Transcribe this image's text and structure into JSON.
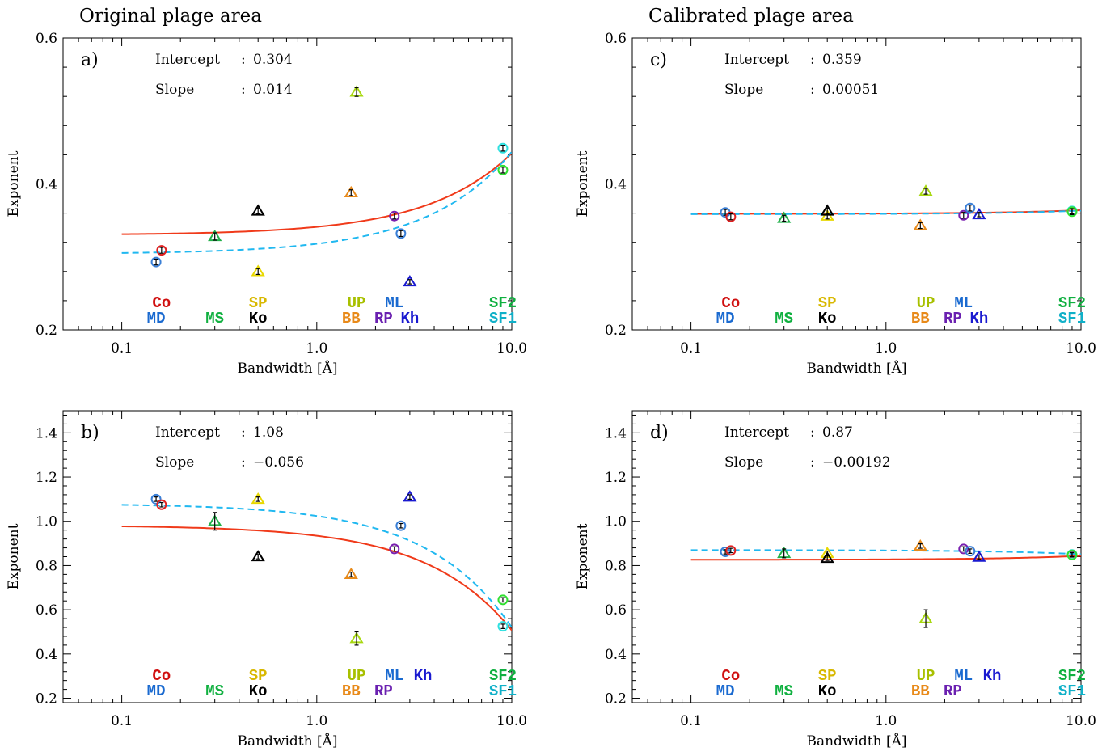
{
  "column_titles": [
    "Original plage area",
    "Calibrated plage area"
  ],
  "chart_data": [
    {
      "panel": "a)",
      "type": "scatter",
      "xscale": "log",
      "xlim": [
        0.05,
        10.0
      ],
      "ylim": [
        0.2,
        0.6
      ],
      "xticks": [
        0.1,
        1.0,
        10.0
      ],
      "xtick_labels": [
        "0.1",
        "1.0",
        "10.0"
      ],
      "yticks": [
        0.2,
        0.4,
        0.6
      ],
      "ytick_labels": [
        "0.2",
        "0.4",
        "0.6"
      ],
      "xlabel": "Bandwidth [Å]",
      "ylabel": "Exponent",
      "annotations": [
        {
          "label": "Intercept",
          "sep": ": ",
          "value": "0.304"
        },
        {
          "label": "Slope",
          "sep": ": ",
          "value": "0.014"
        }
      ],
      "points": [
        {
          "x": 0.15,
          "y": 0.293,
          "err": 0.004,
          "marker": "circle",
          "color": "#3a7fd6"
        },
        {
          "x": 0.16,
          "y": 0.309,
          "err": 0.004,
          "marker": "circle",
          "color": "#e02020"
        },
        {
          "x": 0.3,
          "y": 0.328,
          "err": 0.005,
          "marker": "triangle",
          "color": "#22b04a"
        },
        {
          "x": 0.5,
          "y": 0.28,
          "err": 0.004,
          "marker": "triangle",
          "color": "#e8d800"
        },
        {
          "x": 0.5,
          "y": 0.363,
          "err": 0.004,
          "marker": "triangle",
          "color": "#000000"
        },
        {
          "x": 1.5,
          "y": 0.388,
          "err": 0.004,
          "marker": "triangle",
          "color": "#e88a1a"
        },
        {
          "x": 1.6,
          "y": 0.526,
          "err": 0.006,
          "marker": "triangle",
          "color": "#a8d810"
        },
        {
          "x": 2.5,
          "y": 0.356,
          "err": 0.004,
          "marker": "circle",
          "color": "#7a20b0"
        },
        {
          "x": 2.7,
          "y": 0.332,
          "err": 0.004,
          "marker": "circle",
          "color": "#3a7fd6"
        },
        {
          "x": 3.0,
          "y": 0.266,
          "err": 0.003,
          "marker": "triangle",
          "color": "#1a1ad0"
        },
        {
          "x": 9.0,
          "y": 0.449,
          "err": 0.004,
          "marker": "circle",
          "color": "#30e0e0"
        },
        {
          "x": 9.0,
          "y": 0.419,
          "err": 0.004,
          "marker": "circle",
          "color": "#30e030"
        }
      ],
      "fits": [
        {
          "style": "solid",
          "color": "#f03a1a",
          "intercept": 0.33,
          "slope": 0.0112
        },
        {
          "style": "dashed",
          "color": "#20b8f0",
          "intercept": 0.304,
          "slope": 0.014
        }
      ],
      "instrument_labels": [
        {
          "text": "Co",
          "x": 0.16,
          "row": 1,
          "color": "#d01010"
        },
        {
          "text": "SP",
          "x": 0.5,
          "row": 1,
          "color": "#d8b800"
        },
        {
          "text": "UP",
          "x": 1.6,
          "row": 1,
          "color": "#a8c000"
        },
        {
          "text": "ML",
          "x": 2.5,
          "row": 1,
          "color": "#1a6ad0"
        },
        {
          "text": "SF2",
          "x": 9.0,
          "row": 1,
          "color": "#10b040"
        },
        {
          "text": "MD",
          "x": 0.15,
          "row": 2,
          "color": "#1a6ad0"
        },
        {
          "text": "MS",
          "x": 0.3,
          "row": 2,
          "color": "#10b040"
        },
        {
          "text": "Ko",
          "x": 0.5,
          "row": 2,
          "color": "#000000"
        },
        {
          "text": "BB",
          "x": 1.5,
          "row": 2,
          "color": "#e88a1a"
        },
        {
          "text": "RP",
          "x": 2.2,
          "row": 2,
          "color": "#6a20b0"
        },
        {
          "text": "Kh",
          "x": 3.0,
          "row": 2,
          "color": "#1a1ad0"
        },
        {
          "text": "SF1",
          "x": 9.0,
          "row": 2,
          "color": "#10b0c8"
        }
      ]
    },
    {
      "panel": "b)",
      "type": "scatter",
      "xscale": "log",
      "xlim": [
        0.05,
        10.0
      ],
      "ylim": [
        0.18,
        1.5
      ],
      "xticks": [
        0.1,
        1.0,
        10.0
      ],
      "xtick_labels": [
        "0.1",
        "1.0",
        "10.0"
      ],
      "yticks": [
        0.2,
        0.4,
        0.6,
        0.8,
        1.0,
        1.2,
        1.4
      ],
      "ytick_labels": [
        "0.2",
        "0.4",
        "0.6",
        "0.8",
        "1.0",
        "1.2",
        "1.4"
      ],
      "xlabel": "Bandwidth [Å]",
      "ylabel": "Exponent",
      "annotations": [
        {
          "label": "Intercept",
          "sep": ": ",
          "value": "1.08"
        },
        {
          "label": "Slope",
          "sep": ": ",
          "value": "−0.056"
        }
      ],
      "points": [
        {
          "x": 0.15,
          "y": 1.1,
          "err": 0.01,
          "marker": "circle",
          "color": "#3a7fd6"
        },
        {
          "x": 0.16,
          "y": 1.075,
          "err": 0.01,
          "marker": "circle",
          "color": "#e02020"
        },
        {
          "x": 0.3,
          "y": 1.0,
          "err": 0.04,
          "marker": "triangle",
          "color": "#22b04a"
        },
        {
          "x": 0.5,
          "y": 1.1,
          "err": 0.01,
          "marker": "triangle",
          "color": "#e8d800"
        },
        {
          "x": 0.5,
          "y": 0.84,
          "err": 0.01,
          "marker": "triangle",
          "color": "#000000"
        },
        {
          "x": 1.5,
          "y": 0.76,
          "err": 0.01,
          "marker": "triangle",
          "color": "#e88a1a"
        },
        {
          "x": 1.6,
          "y": 0.47,
          "err": 0.03,
          "marker": "triangle",
          "color": "#a8d810"
        },
        {
          "x": 2.5,
          "y": 0.875,
          "err": 0.01,
          "marker": "circle",
          "color": "#7a20b0"
        },
        {
          "x": 2.7,
          "y": 0.98,
          "err": 0.01,
          "marker": "circle",
          "color": "#3a7fd6"
        },
        {
          "x": 3.0,
          "y": 1.11,
          "err": 0.01,
          "marker": "triangle",
          "color": "#1a1ad0"
        },
        {
          "x": 9.0,
          "y": 0.525,
          "err": 0.01,
          "marker": "circle",
          "color": "#30e0e0"
        },
        {
          "x": 9.0,
          "y": 0.645,
          "err": 0.01,
          "marker": "circle",
          "color": "#30e030"
        }
      ],
      "fits": [
        {
          "style": "solid",
          "color": "#f03a1a",
          "intercept": 0.982,
          "slope": -0.0475
        },
        {
          "style": "dashed",
          "color": "#20b8f0",
          "intercept": 1.08,
          "slope": -0.056
        }
      ],
      "instrument_labels": [
        {
          "text": "Co",
          "x": 0.16,
          "row": 1,
          "color": "#d01010"
        },
        {
          "text": "SP",
          "x": 0.5,
          "row": 1,
          "color": "#d8b800"
        },
        {
          "text": "UP",
          "x": 1.6,
          "row": 1,
          "color": "#a8c000"
        },
        {
          "text": "ML",
          "x": 2.5,
          "row": 1,
          "color": "#1a6ad0"
        },
        {
          "text": "Kh",
          "x": 3.5,
          "row": 1,
          "color": "#1a1ad0"
        },
        {
          "text": "SF2",
          "x": 9.0,
          "row": 1,
          "color": "#10b040"
        },
        {
          "text": "MD",
          "x": 0.15,
          "row": 2,
          "color": "#1a6ad0"
        },
        {
          "text": "MS",
          "x": 0.3,
          "row": 2,
          "color": "#10b040"
        },
        {
          "text": "Ko",
          "x": 0.5,
          "row": 2,
          "color": "#000000"
        },
        {
          "text": "BB",
          "x": 1.5,
          "row": 2,
          "color": "#e88a1a"
        },
        {
          "text": "RP",
          "x": 2.2,
          "row": 2,
          "color": "#6a20b0"
        },
        {
          "text": "SF1",
          "x": 9.0,
          "row": 2,
          "color": "#10b0c8"
        }
      ]
    },
    {
      "panel": "c)",
      "type": "scatter",
      "xscale": "log",
      "xlim": [
        0.05,
        10.0
      ],
      "ylim": [
        0.2,
        0.6
      ],
      "xticks": [
        0.1,
        1.0,
        10.0
      ],
      "xtick_labels": [
        "0.1",
        "1.0",
        "10.0"
      ],
      "yticks": [
        0.2,
        0.4,
        0.6
      ],
      "ytick_labels": [
        "0.2",
        "0.4",
        "0.6"
      ],
      "xlabel": "Bandwidth [Å]",
      "ylabel": "Exponent",
      "annotations": [
        {
          "label": "Intercept",
          "sep": ": ",
          "value": "0.359"
        },
        {
          "label": "Slope",
          "sep": ": ",
          "value": "0.00051"
        }
      ],
      "points": [
        {
          "x": 0.15,
          "y": 0.361,
          "err": 0.004,
          "marker": "circle",
          "color": "#3a7fd6"
        },
        {
          "x": 0.16,
          "y": 0.355,
          "err": 0.004,
          "marker": "circle",
          "color": "#e02020"
        },
        {
          "x": 0.3,
          "y": 0.353,
          "err": 0.004,
          "marker": "triangle",
          "color": "#22b04a"
        },
        {
          "x": 0.5,
          "y": 0.356,
          "err": 0.004,
          "marker": "triangle",
          "color": "#e8d800"
        },
        {
          "x": 0.5,
          "y": 0.363,
          "err": 0.004,
          "marker": "triangle",
          "color": "#000000"
        },
        {
          "x": 1.5,
          "y": 0.343,
          "err": 0.004,
          "marker": "triangle",
          "color": "#e88a1a"
        },
        {
          "x": 1.6,
          "y": 0.39,
          "err": 0.004,
          "marker": "triangle",
          "color": "#a8d810"
        },
        {
          "x": 2.5,
          "y": 0.357,
          "err": 0.004,
          "marker": "circle",
          "color": "#7a20b0"
        },
        {
          "x": 2.7,
          "y": 0.367,
          "err": 0.004,
          "marker": "circle",
          "color": "#3a7fd6"
        },
        {
          "x": 3.0,
          "y": 0.358,
          "err": 0.003,
          "marker": "triangle",
          "color": "#1a1ad0"
        },
        {
          "x": 9.0,
          "y": 0.363,
          "err": 0.004,
          "marker": "circle",
          "color": "#30e0e0"
        },
        {
          "x": 9.0,
          "y": 0.362,
          "err": 0.004,
          "marker": "circle",
          "color": "#30e030"
        }
      ],
      "fits": [
        {
          "style": "solid",
          "color": "#f03a1a",
          "intercept": 0.359,
          "slope": 0.00051
        },
        {
          "style": "dashed",
          "color": "#20b8f0",
          "intercept": 0.3585,
          "slope": 0.0005
        }
      ],
      "instrument_labels": [
        {
          "text": "Co",
          "x": 0.16,
          "row": 1,
          "color": "#d01010"
        },
        {
          "text": "SP",
          "x": 0.5,
          "row": 1,
          "color": "#d8b800"
        },
        {
          "text": "UP",
          "x": 1.6,
          "row": 1,
          "color": "#a8c000"
        },
        {
          "text": "ML",
          "x": 2.5,
          "row": 1,
          "color": "#1a6ad0"
        },
        {
          "text": "SF2",
          "x": 9.0,
          "row": 1,
          "color": "#10b040"
        },
        {
          "text": "MD",
          "x": 0.15,
          "row": 2,
          "color": "#1a6ad0"
        },
        {
          "text": "MS",
          "x": 0.3,
          "row": 2,
          "color": "#10b040"
        },
        {
          "text": "Ko",
          "x": 0.5,
          "row": 2,
          "color": "#000000"
        },
        {
          "text": "BB",
          "x": 1.5,
          "row": 2,
          "color": "#e88a1a"
        },
        {
          "text": "RP",
          "x": 2.2,
          "row": 2,
          "color": "#6a20b0"
        },
        {
          "text": "Kh",
          "x": 3.0,
          "row": 2,
          "color": "#1a1ad0"
        },
        {
          "text": "SF1",
          "x": 9.0,
          "row": 2,
          "color": "#10b0c8"
        }
      ]
    },
    {
      "panel": "d)",
      "type": "scatter",
      "xscale": "log",
      "xlim": [
        0.05,
        10.0
      ],
      "ylim": [
        0.18,
        1.5
      ],
      "xticks": [
        0.1,
        1.0,
        10.0
      ],
      "xtick_labels": [
        "0.1",
        "1.0",
        "10.0"
      ],
      "yticks": [
        0.2,
        0.4,
        0.6,
        0.8,
        1.0,
        1.2,
        1.4
      ],
      "ytick_labels": [
        "0.2",
        "0.4",
        "0.6",
        "0.8",
        "1.0",
        "1.2",
        "1.4"
      ],
      "xlabel": "Bandwidth [Å]",
      "ylabel": "Exponent",
      "annotations": [
        {
          "label": "Intercept",
          "sep": ": ",
          "value": "0.87"
        },
        {
          "label": "Slope",
          "sep": ": ",
          "value": "−0.00192"
        }
      ],
      "points": [
        {
          "x": 0.15,
          "y": 0.862,
          "err": 0.01,
          "marker": "circle",
          "color": "#3a7fd6"
        },
        {
          "x": 0.16,
          "y": 0.868,
          "err": 0.01,
          "marker": "circle",
          "color": "#e02020"
        },
        {
          "x": 0.3,
          "y": 0.855,
          "err": 0.02,
          "marker": "triangle",
          "color": "#22b04a"
        },
        {
          "x": 0.5,
          "y": 0.855,
          "err": 0.01,
          "marker": "triangle",
          "color": "#e8d800"
        },
        {
          "x": 0.5,
          "y": 0.833,
          "err": 0.01,
          "marker": "triangle",
          "color": "#000000"
        },
        {
          "x": 1.5,
          "y": 0.888,
          "err": 0.01,
          "marker": "triangle",
          "color": "#e88a1a"
        },
        {
          "x": 1.6,
          "y": 0.56,
          "err": 0.04,
          "marker": "triangle",
          "color": "#a8d810"
        },
        {
          "x": 2.5,
          "y": 0.875,
          "err": 0.01,
          "marker": "circle",
          "color": "#7a20b0"
        },
        {
          "x": 2.7,
          "y": 0.865,
          "err": 0.01,
          "marker": "circle",
          "color": "#3a7fd6"
        },
        {
          "x": 3.0,
          "y": 0.838,
          "err": 0.01,
          "marker": "triangle",
          "color": "#1a1ad0"
        },
        {
          "x": 9.0,
          "y": 0.85,
          "err": 0.01,
          "marker": "circle",
          "color": "#30e0e0"
        },
        {
          "x": 9.0,
          "y": 0.848,
          "err": 0.01,
          "marker": "circle",
          "color": "#30e030"
        }
      ],
      "fits": [
        {
          "style": "solid",
          "color": "#f03a1a",
          "intercept": 0.826,
          "slope": 0.0018
        },
        {
          "style": "dashed",
          "color": "#20b8f0",
          "intercept": 0.87,
          "slope": -0.00192
        }
      ],
      "instrument_labels": [
        {
          "text": "Co",
          "x": 0.16,
          "row": 1,
          "color": "#d01010"
        },
        {
          "text": "SP",
          "x": 0.5,
          "row": 1,
          "color": "#d8b800"
        },
        {
          "text": "UP",
          "x": 1.6,
          "row": 1,
          "color": "#a8c000"
        },
        {
          "text": "ML",
          "x": 2.5,
          "row": 1,
          "color": "#1a6ad0"
        },
        {
          "text": "Kh",
          "x": 3.5,
          "row": 1,
          "color": "#1a1ad0"
        },
        {
          "text": "SF2",
          "x": 9.0,
          "row": 1,
          "color": "#10b040"
        },
        {
          "text": "MD",
          "x": 0.15,
          "row": 2,
          "color": "#1a6ad0"
        },
        {
          "text": "MS",
          "x": 0.3,
          "row": 2,
          "color": "#10b040"
        },
        {
          "text": "Ko",
          "x": 0.5,
          "row": 2,
          "color": "#000000"
        },
        {
          "text": "BB",
          "x": 1.5,
          "row": 2,
          "color": "#e88a1a"
        },
        {
          "text": "RP",
          "x": 2.2,
          "row": 2,
          "color": "#6a20b0"
        },
        {
          "text": "SF1",
          "x": 9.0,
          "row": 2,
          "color": "#10b0c8"
        }
      ]
    }
  ]
}
